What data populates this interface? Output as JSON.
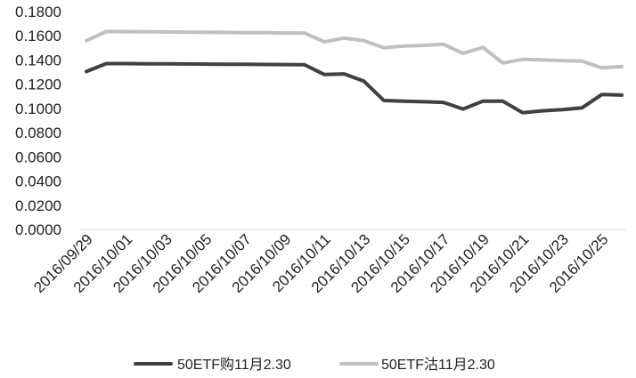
{
  "chart_data": {
    "type": "line",
    "title": "",
    "xlabel": "",
    "ylabel": "",
    "ylim": [
      0,
      0.18
    ],
    "y_ticks": [
      "0.0000",
      "0.0200",
      "0.0400",
      "0.0600",
      "0.0800",
      "0.1000",
      "0.1200",
      "0.1400",
      "0.1600",
      "0.1800"
    ],
    "x_tick_labels": [
      "2016/09/29",
      "2016/10/01",
      "2016/10/03",
      "2016/10/05",
      "2016/10/07",
      "2016/10/09",
      "2016/10/11",
      "2016/10/13",
      "2016/10/15",
      "2016/10/17",
      "2016/10/19",
      "2016/10/21",
      "2016/10/23",
      "2016/10/25"
    ],
    "x": [
      "2016/09/29",
      "2016/09/30",
      "2016/10/01",
      "2016/10/02",
      "2016/10/03",
      "2016/10/04",
      "2016/10/05",
      "2016/10/06",
      "2016/10/07",
      "2016/10/08",
      "2016/10/09",
      "2016/10/10",
      "2016/10/11",
      "2016/10/12",
      "2016/10/13",
      "2016/10/14",
      "2016/10/15",
      "2016/10/16",
      "2016/10/17",
      "2016/10/18",
      "2016/10/19",
      "2016/10/20",
      "2016/10/21",
      "2016/10/22",
      "2016/10/23",
      "2016/10/24",
      "2016/10/25",
      "2016/10/26"
    ],
    "grid": false,
    "legend_position": "bottom",
    "series": [
      {
        "name": "50ETF购11月2.30",
        "color": "#404040",
        "values": [
          0.1305,
          0.137,
          0.137,
          0.1369,
          0.1368,
          0.1367,
          0.1366,
          0.1365,
          0.1364,
          0.1363,
          0.1362,
          0.1361,
          0.128,
          0.1285,
          0.1225,
          0.1065,
          0.106,
          0.1055,
          0.105,
          0.0995,
          0.106,
          0.106,
          0.0965,
          0.098,
          0.099,
          0.1005,
          0.1115,
          0.111
        ]
      },
      {
        "name": "50ETF沽11月2.30",
        "color": "#c0c0c0",
        "values": [
          0.156,
          0.1635,
          0.1634,
          0.1633,
          0.1632,
          0.163,
          0.1629,
          0.1628,
          0.1626,
          0.1625,
          0.1623,
          0.1622,
          0.155,
          0.158,
          0.156,
          0.15,
          0.1515,
          0.152,
          0.153,
          0.1455,
          0.1505,
          0.1375,
          0.1405,
          0.14,
          0.1395,
          0.139,
          0.1335,
          0.1345
        ]
      }
    ]
  }
}
